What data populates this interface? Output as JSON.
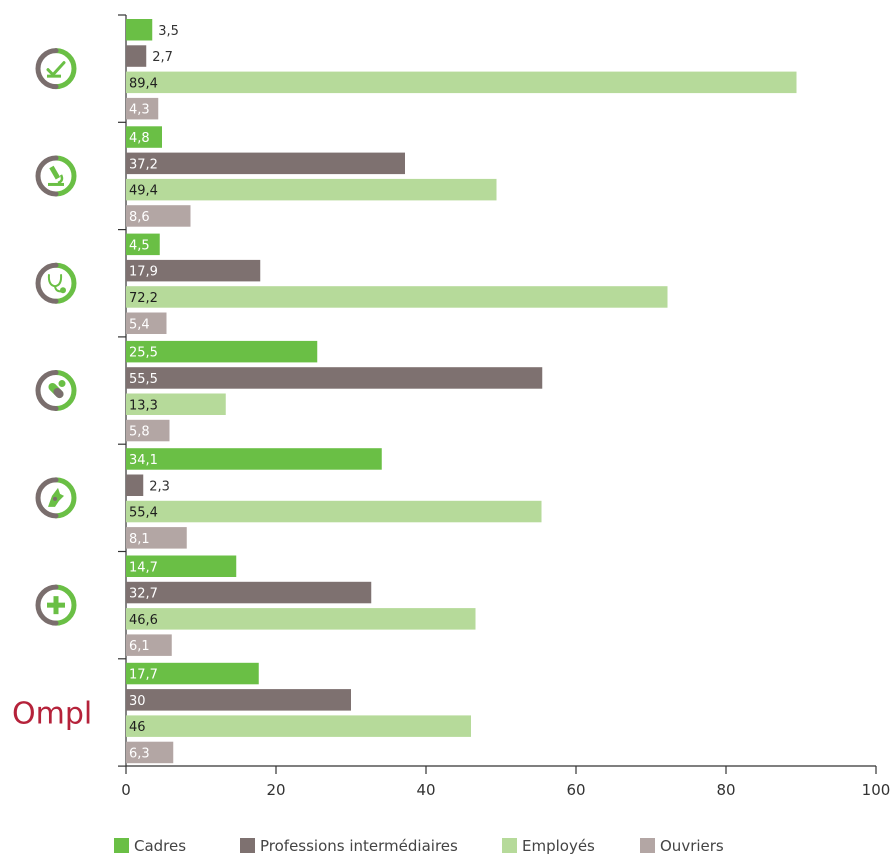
{
  "chart_data": {
    "type": "bar",
    "orientation": "horizontal",
    "groups": [
      {
        "icon": "checklist-icon",
        "logo_text": ""
      },
      {
        "icon": "microscope-icon",
        "logo_text": ""
      },
      {
        "icon": "stethoscope-icon",
        "logo_text": ""
      },
      {
        "icon": "pills-icon",
        "logo_text": ""
      },
      {
        "icon": "veterinary-icon",
        "logo_text": ""
      },
      {
        "icon": "pharmacy-cross-icon",
        "logo_text": ""
      },
      {
        "icon": "ompl-logo",
        "logo_text": "Ompl"
      }
    ],
    "series": [
      {
        "name": "Cadres",
        "color": "#6abf45",
        "values": [
          3.5,
          4.8,
          4.5,
          25.5,
          34.1,
          14.7,
          17.7
        ],
        "labels": [
          "3,5",
          "4,8",
          "4,5",
          "25,5",
          "34,1",
          "14,7",
          "17,7"
        ]
      },
      {
        "name": "Professions intermédiaires",
        "color": "#7e7170",
        "values": [
          2.7,
          37.2,
          17.9,
          55.5,
          2.3,
          32.7,
          30
        ],
        "labels": [
          "2,7",
          "37,2",
          "17,9",
          "55,5",
          "2,3",
          "32,7",
          "30"
        ]
      },
      {
        "name": "Employés",
        "color": "#b6da9a",
        "values": [
          89.4,
          49.4,
          72.2,
          13.3,
          55.4,
          46.6,
          46
        ],
        "labels": [
          "89,4",
          "49,4",
          "72,2",
          "13,3",
          "55,4",
          "46,6",
          "46"
        ]
      },
      {
        "name": "Ouvriers",
        "color": "#b3a6a4",
        "values": [
          4.3,
          8.6,
          5.4,
          5.8,
          8.1,
          6.1,
          6.3
        ],
        "labels": [
          "4,3",
          "8,6",
          "5,4",
          "5,8",
          "8,1",
          "6,1",
          "6,3"
        ]
      }
    ],
    "xlim": [
      0,
      100
    ],
    "xticks": [
      "0",
      "20",
      "40",
      "60",
      "80",
      "100"
    ],
    "legend_position": "bottom",
    "grid": false
  }
}
